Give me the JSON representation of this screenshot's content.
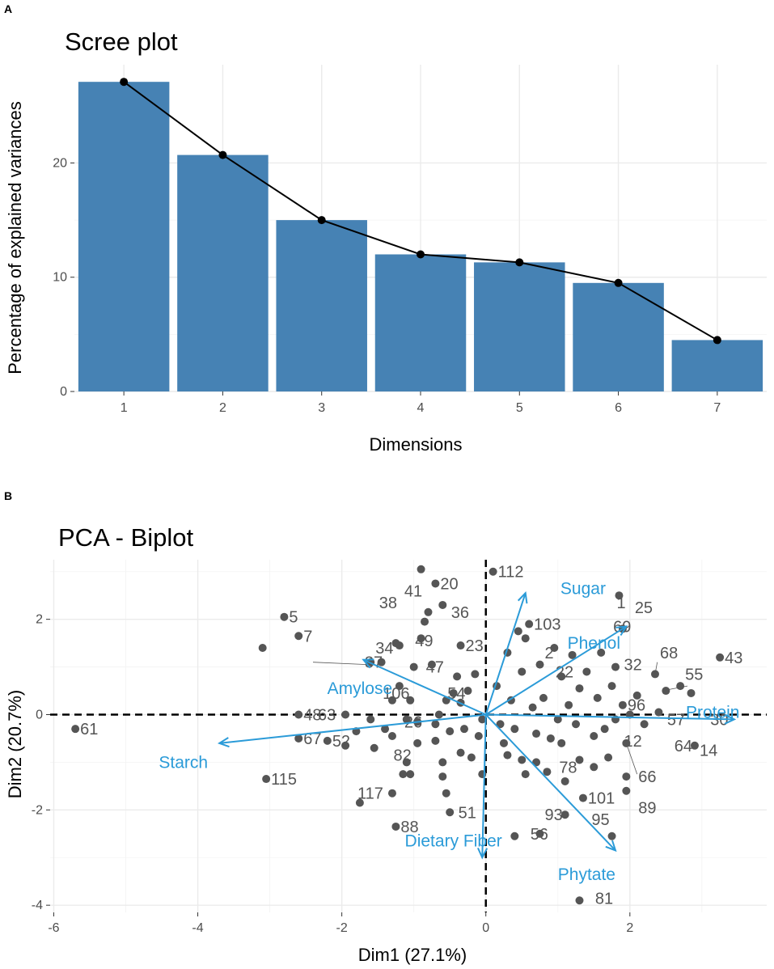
{
  "panels": {
    "a_letter": "A",
    "b_letter": "B"
  },
  "colors": {
    "bar": "#4682b4",
    "arrow": "#2b9bd8",
    "point": "#555555"
  },
  "chart_data": [
    {
      "type": "bar",
      "title": "Scree plot",
      "xlabel": "Dimensions",
      "ylabel": "Percentage of explained variances",
      "categories": [
        "1",
        "2",
        "3",
        "4",
        "5",
        "6",
        "7"
      ],
      "values": [
        27.1,
        20.7,
        15.0,
        12.0,
        11.3,
        9.5,
        4.5
      ],
      "line_overlay": true,
      "ylim": [
        0,
        28.6
      ],
      "yticks": [
        0,
        10,
        20
      ],
      "ytick_labels": [
        "0",
        "10",
        "20"
      ]
    },
    {
      "type": "scatter",
      "title": "PCA - Biplot",
      "xlabel": "Dim1 (27.1%)",
      "ylabel": "Dim2 (20.7%)",
      "xlim": [
        -6.05,
        3.9
      ],
      "ylim": [
        -4.15,
        3.25
      ],
      "xticks": [
        -6,
        -4,
        -2,
        0,
        2
      ],
      "xtick_labels": [
        "-6",
        "-4",
        "-2",
        "0",
        "2"
      ],
      "yticks": [
        -4,
        -2,
        0,
        2
      ],
      "ytick_labels": [
        "-4",
        "-2",
        "0",
        "2"
      ],
      "reference_lines": {
        "x": 0,
        "y": 0
      },
      "points": [
        {
          "x": -5.7,
          "y": -0.3
        },
        {
          "x": -3.1,
          "y": 1.4
        },
        {
          "x": -2.8,
          "y": 2.05
        },
        {
          "x": -2.6,
          "y": 1.65
        },
        {
          "x": -2.6,
          "y": 0.0
        },
        {
          "x": -2.6,
          "y": -0.5
        },
        {
          "x": -3.05,
          "y": -1.35
        },
        {
          "x": -2.2,
          "y": -0.55
        },
        {
          "x": -1.95,
          "y": -0.65
        },
        {
          "x": -1.95,
          "y": 0.0
        },
        {
          "x": -1.8,
          "y": -0.35
        },
        {
          "x": -1.75,
          "y": -1.85
        },
        {
          "x": -1.6,
          "y": 1.1
        },
        {
          "x": -1.45,
          "y": 1.1
        },
        {
          "x": -1.6,
          "y": -0.1
        },
        {
          "x": -1.55,
          "y": -0.7
        },
        {
          "x": -1.4,
          "y": -0.3
        },
        {
          "x": -1.3,
          "y": -0.45
        },
        {
          "x": -1.3,
          "y": 0.3
        },
        {
          "x": -1.25,
          "y": 1.5
        },
        {
          "x": -1.2,
          "y": 1.45
        },
        {
          "x": -1.2,
          "y": 0.6
        },
        {
          "x": -1.1,
          "y": -0.1
        },
        {
          "x": -1.1,
          "y": -1.0
        },
        {
          "x": -1.05,
          "y": -1.25
        },
        {
          "x": -1.05,
          "y": 0.3
        },
        {
          "x": -1.0,
          "y": 1.0
        },
        {
          "x": -0.95,
          "y": -0.6
        },
        {
          "x": -0.95,
          "y": -0.15
        },
        {
          "x": -0.9,
          "y": 1.6
        },
        {
          "x": -0.9,
          "y": 3.05
        },
        {
          "x": -0.85,
          "y": 1.95
        },
        {
          "x": -0.8,
          "y": 2.15
        },
        {
          "x": -0.75,
          "y": 1.05
        },
        {
          "x": -0.7,
          "y": -0.2
        },
        {
          "x": -0.7,
          "y": -0.55
        },
        {
          "x": -0.65,
          "y": 0.0
        },
        {
          "x": -0.6,
          "y": 2.3
        },
        {
          "x": -0.55,
          "y": 0.3
        },
        {
          "x": -0.5,
          "y": -0.35
        },
        {
          "x": -0.45,
          "y": 0.45
        },
        {
          "x": -0.4,
          "y": 0.8
        },
        {
          "x": -0.35,
          "y": 1.45
        },
        {
          "x": -0.35,
          "y": -0.8
        },
        {
          "x": -0.3,
          "y": -0.3
        },
        {
          "x": -0.25,
          "y": 0.5
        },
        {
          "x": -0.2,
          "y": -0.9
        },
        {
          "x": -0.15,
          "y": 0.85
        },
        {
          "x": -0.1,
          "y": -0.45
        },
        {
          "x": -0.05,
          "y": -0.1
        },
        {
          "x": -0.05,
          "y": -1.25
        },
        {
          "x": -0.6,
          "y": -1.3
        },
        {
          "x": -0.55,
          "y": -1.65
        },
        {
          "x": -1.15,
          "y": -1.25
        },
        {
          "x": -1.3,
          "y": -1.65
        },
        {
          "x": -1.25,
          "y": -2.35
        },
        {
          "x": -0.5,
          "y": -2.05
        },
        {
          "x": -0.6,
          "y": -1.0
        },
        {
          "x": -0.35,
          "y": 0.25
        },
        {
          "x": -0.7,
          "y": 2.75
        },
        {
          "x": 0.1,
          "y": 3.0
        },
        {
          "x": 0.15,
          "y": 0.6
        },
        {
          "x": 0.2,
          "y": -0.2
        },
        {
          "x": 0.25,
          "y": -0.6
        },
        {
          "x": 0.3,
          "y": 1.3
        },
        {
          "x": 0.3,
          "y": -0.85
        },
        {
          "x": 0.35,
          "y": 0.3
        },
        {
          "x": 0.4,
          "y": -0.3
        },
        {
          "x": 0.45,
          "y": 1.75
        },
        {
          "x": 0.5,
          "y": 0.9
        },
        {
          "x": 0.5,
          "y": -0.95
        },
        {
          "x": 0.55,
          "y": -1.25
        },
        {
          "x": 0.55,
          "y": 1.6
        },
        {
          "x": 0.6,
          "y": 1.9
        },
        {
          "x": 0.65,
          "y": 0.15
        },
        {
          "x": 0.7,
          "y": -0.4
        },
        {
          "x": 0.7,
          "y": -1.0
        },
        {
          "x": 0.75,
          "y": 1.05
        },
        {
          "x": 0.8,
          "y": 0.35
        },
        {
          "x": 0.85,
          "y": -1.2
        },
        {
          "x": 0.9,
          "y": -0.5
        },
        {
          "x": 0.95,
          "y": 1.4
        },
        {
          "x": 1.0,
          "y": -0.1
        },
        {
          "x": 1.05,
          "y": 0.8
        },
        {
          "x": 1.05,
          "y": -0.6
        },
        {
          "x": 1.1,
          "y": -1.4
        },
        {
          "x": 1.15,
          "y": 0.2
        },
        {
          "x": 1.2,
          "y": 1.25
        },
        {
          "x": 1.25,
          "y": -0.2
        },
        {
          "x": 1.3,
          "y": -0.95
        },
        {
          "x": 1.3,
          "y": 0.55
        },
        {
          "x": 1.35,
          "y": -1.75
        },
        {
          "x": 1.4,
          "y": 0.9
        },
        {
          "x": 1.5,
          "y": -0.45
        },
        {
          "x": 1.55,
          "y": 0.35
        },
        {
          "x": 1.6,
          "y": 1.3
        },
        {
          "x": 1.65,
          "y": -0.3
        },
        {
          "x": 1.7,
          "y": -0.9
        },
        {
          "x": 1.75,
          "y": 0.6
        },
        {
          "x": 1.8,
          "y": 1.0
        },
        {
          "x": 1.85,
          "y": 2.5
        },
        {
          "x": 1.9,
          "y": 1.8
        },
        {
          "x": 1.95,
          "y": -1.3
        },
        {
          "x": 1.95,
          "y": -0.6
        },
        {
          "x": 2.0,
          "y": 0.0
        },
        {
          "x": 2.1,
          "y": 0.4
        },
        {
          "x": 2.2,
          "y": -0.2
        },
        {
          "x": 2.35,
          "y": 0.85
        },
        {
          "x": 2.4,
          "y": 0.05
        },
        {
          "x": 2.5,
          "y": 0.5
        },
        {
          "x": 2.7,
          "y": 0.6
        },
        {
          "x": 2.85,
          "y": 0.45
        },
        {
          "x": 2.9,
          "y": -0.65
        },
        {
          "x": 3.25,
          "y": 1.2
        },
        {
          "x": 1.3,
          "y": -3.9
        },
        {
          "x": 0.75,
          "y": -2.5
        },
        {
          "x": 1.75,
          "y": -2.55
        },
        {
          "x": 1.1,
          "y": -2.1
        },
        {
          "x": 1.95,
          "y": -1.6
        },
        {
          "x": 0.4,
          "y": -2.55
        },
        {
          "x": 1.8,
          "y": -0.1
        },
        {
          "x": 1.5,
          "y": -1.1
        },
        {
          "x": 1.9,
          "y": 0.2
        }
      ],
      "point_labels": [
        {
          "text": "61",
          "x": -5.7,
          "y": -0.3
        },
        {
          "text": "5",
          "x": -2.8,
          "y": 2.05
        },
        {
          "text": "7",
          "x": -2.6,
          "y": 1.65
        },
        {
          "text": "38",
          "x": -1.55,
          "y": 2.35
        },
        {
          "text": "41",
          "x": -1.2,
          "y": 2.6
        },
        {
          "text": "20",
          "x": -0.7,
          "y": 2.75
        },
        {
          "text": "36",
          "x": -0.55,
          "y": 2.15
        },
        {
          "text": "112",
          "x": 0.1,
          "y": 3.0
        },
        {
          "text": "34",
          "x": -1.6,
          "y": 1.4
        },
        {
          "text": "49",
          "x": -1.05,
          "y": 1.55
        },
        {
          "text": "23",
          "x": -0.35,
          "y": 1.45
        },
        {
          "text": "87",
          "x": -1.75,
          "y": 1.1
        },
        {
          "text": "47",
          "x": -0.9,
          "y": 1.0
        },
        {
          "text": "106",
          "x": -1.5,
          "y": 0.45
        },
        {
          "text": "54",
          "x": -0.6,
          "y": 0.45
        },
        {
          "text": "48",
          "x": -2.6,
          "y": 0.0
        },
        {
          "text": "63",
          "x": -2.4,
          "y": 0.0
        },
        {
          "text": "26",
          "x": -1.2,
          "y": -0.15
        },
        {
          "text": "67",
          "x": -2.6,
          "y": -0.5
        },
        {
          "text": "52",
          "x": -2.2,
          "y": -0.55
        },
        {
          "text": "82",
          "x": -1.35,
          "y": -0.85
        },
        {
          "text": "115",
          "x": -3.05,
          "y": -1.35
        },
        {
          "text": "117",
          "x": -1.85,
          "y": -1.65
        },
        {
          "text": "51",
          "x": -0.45,
          "y": -2.05
        },
        {
          "text": "88",
          "x": -1.25,
          "y": -2.35
        },
        {
          "text": "56",
          "x": 0.55,
          "y": -2.5
        },
        {
          "text": "103",
          "x": 0.6,
          "y": 1.9
        },
        {
          "text": "2",
          "x": 0.75,
          "y": 1.3
        },
        {
          "text": "22",
          "x": 0.9,
          "y": 0.9
        },
        {
          "text": "1",
          "x": 1.75,
          "y": 2.35
        },
        {
          "text": "25",
          "x": 2.0,
          "y": 2.25
        },
        {
          "text": "69",
          "x": 1.7,
          "y": 1.85
        },
        {
          "text": "68",
          "x": 2.35,
          "y": 1.3
        },
        {
          "text": "32",
          "x": 1.85,
          "y": 1.05
        },
        {
          "text": "43",
          "x": 3.25,
          "y": 1.2
        },
        {
          "text": "55",
          "x": 2.7,
          "y": 0.85
        },
        {
          "text": "96",
          "x": 1.9,
          "y": 0.2
        },
        {
          "text": "57",
          "x": 2.45,
          "y": -0.1
        },
        {
          "text": "30",
          "x": 3.05,
          "y": -0.1
        },
        {
          "text": "12",
          "x": 1.85,
          "y": -0.55
        },
        {
          "text": "64",
          "x": 2.55,
          "y": -0.65
        },
        {
          "text": "14",
          "x": 2.9,
          "y": -0.75
        },
        {
          "text": "66",
          "x": 2.05,
          "y": -1.3
        },
        {
          "text": "78",
          "x": 0.95,
          "y": -1.1
        },
        {
          "text": "101",
          "x": 1.35,
          "y": -1.75
        },
        {
          "text": "89",
          "x": 2.05,
          "y": -1.95
        },
        {
          "text": "93",
          "x": 0.75,
          "y": -2.1
        },
        {
          "text": "95",
          "x": 1.4,
          "y": -2.2
        },
        {
          "text": "81",
          "x": 1.45,
          "y": -3.85
        }
      ],
      "variables": [
        {
          "name": "Starch",
          "x": -3.7,
          "y": -0.6
        },
        {
          "name": "Amylose",
          "x": -1.7,
          "y": 1.15
        },
        {
          "name": "Sugar",
          "x": 0.55,
          "y": 2.55
        },
        {
          "name": "Phenol",
          "x": 1.95,
          "y": 1.85
        },
        {
          "name": "Protein",
          "x": 3.45,
          "y": -0.1
        },
        {
          "name": "Phytate",
          "x": 1.8,
          "y": -2.85
        },
        {
          "name": "Dietary Fiber",
          "x": -0.05,
          "y": -3.0
        }
      ]
    }
  ]
}
